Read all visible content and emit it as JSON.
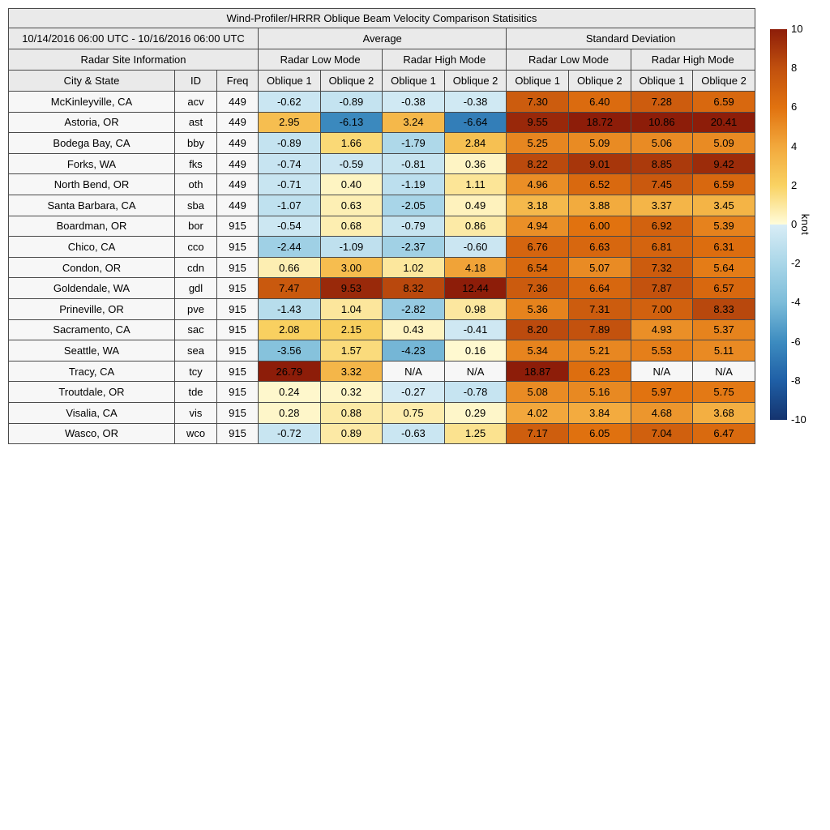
{
  "chart_data": {
    "type": "table",
    "title": "Wind-Profiler/HRRR Oblique Beam Velocity Comparison Statisitics",
    "date_range": "10/14/2016 06:00 UTC - 10/16/2016 06:00 UTC",
    "site_info_header": "Radar Site Information",
    "group_headers": [
      "Average",
      "Standard Deviation"
    ],
    "mode_headers": [
      "Radar Low Mode",
      "Radar High Mode",
      "Radar Low Mode",
      "Radar High Mode"
    ],
    "columns": [
      "City & State",
      "ID",
      "Freq",
      "Oblique 1",
      "Oblique 2",
      "Oblique 1",
      "Oblique 2",
      "Oblique 1",
      "Oblique 2",
      "Oblique 1",
      "Oblique 2"
    ],
    "rows": [
      {
        "city": "McKinleyville, CA",
        "id": "acv",
        "freq": "449",
        "values": [
          "-0.62",
          "-0.89",
          "-0.38",
          "-0.38",
          "7.30",
          "6.40",
          "7.28",
          "6.59"
        ]
      },
      {
        "city": "Astoria, OR",
        "id": "ast",
        "freq": "449",
        "values": [
          "2.95",
          "-6.13",
          "3.24",
          "-6.64",
          "9.55",
          "18.72",
          "10.86",
          "20.41"
        ]
      },
      {
        "city": "Bodega Bay, CA",
        "id": "bby",
        "freq": "449",
        "values": [
          "-0.89",
          "1.66",
          "-1.79",
          "2.84",
          "5.25",
          "5.09",
          "5.06",
          "5.09"
        ]
      },
      {
        "city": "Forks, WA",
        "id": "fks",
        "freq": "449",
        "values": [
          "-0.74",
          "-0.59",
          "-0.81",
          "0.36",
          "8.22",
          "9.01",
          "8.85",
          "9.42"
        ]
      },
      {
        "city": "North Bend, OR",
        "id": "oth",
        "freq": "449",
        "values": [
          "-0.71",
          "0.40",
          "-1.19",
          "1.11",
          "4.96",
          "6.52",
          "7.45",
          "6.59"
        ]
      },
      {
        "city": "Santa Barbara, CA",
        "id": "sba",
        "freq": "449",
        "values": [
          "-1.07",
          "0.63",
          "-2.05",
          "0.49",
          "3.18",
          "3.88",
          "3.37",
          "3.45"
        ]
      },
      {
        "city": "Boardman, OR",
        "id": "bor",
        "freq": "915",
        "values": [
          "-0.54",
          "0.68",
          "-0.79",
          "0.86",
          "4.94",
          "6.00",
          "6.92",
          "5.39"
        ]
      },
      {
        "city": "Chico, CA",
        "id": "cco",
        "freq": "915",
        "values": [
          "-2.44",
          "-1.09",
          "-2.37",
          "-0.60",
          "6.76",
          "6.63",
          "6.81",
          "6.31"
        ]
      },
      {
        "city": "Condon, OR",
        "id": "cdn",
        "freq": "915",
        "values": [
          "0.66",
          "3.00",
          "1.02",
          "4.18",
          "6.54",
          "5.07",
          "7.32",
          "5.64"
        ]
      },
      {
        "city": "Goldendale, WA",
        "id": "gdl",
        "freq": "915",
        "values": [
          "7.47",
          "9.53",
          "8.32",
          "12.44",
          "7.36",
          "6.64",
          "7.87",
          "6.57"
        ]
      },
      {
        "city": "Prineville, OR",
        "id": "pve",
        "freq": "915",
        "values": [
          "-1.43",
          "1.04",
          "-2.82",
          "0.98",
          "5.36",
          "7.31",
          "7.00",
          "8.33"
        ]
      },
      {
        "city": "Sacramento, CA",
        "id": "sac",
        "freq": "915",
        "values": [
          "2.08",
          "2.15",
          "0.43",
          "-0.41",
          "8.20",
          "7.89",
          "4.93",
          "5.37"
        ]
      },
      {
        "city": "Seattle, WA",
        "id": "sea",
        "freq": "915",
        "values": [
          "-3.56",
          "1.57",
          "-4.23",
          "0.16",
          "5.34",
          "5.21",
          "5.53",
          "5.11"
        ]
      },
      {
        "city": "Tracy, CA",
        "id": "tcy",
        "freq": "915",
        "values": [
          "26.79",
          "3.32",
          "N/A",
          "N/A",
          "18.87",
          "6.23",
          "N/A",
          "N/A"
        ]
      },
      {
        "city": "Troutdale, OR",
        "id": "tde",
        "freq": "915",
        "values": [
          "0.24",
          "0.32",
          "-0.27",
          "-0.78",
          "5.08",
          "5.16",
          "5.97",
          "5.75"
        ]
      },
      {
        "city": "Visalia, CA",
        "id": "vis",
        "freq": "915",
        "values": [
          "0.28",
          "0.88",
          "0.75",
          "0.29",
          "4.02",
          "3.84",
          "4.68",
          "3.68"
        ]
      },
      {
        "city": "Wasco, OR",
        "id": "wco",
        "freq": "915",
        "values": [
          "-0.72",
          "0.89",
          "-0.63",
          "1.25",
          "7.17",
          "6.05",
          "7.04",
          "6.47"
        ]
      }
    ],
    "colorbar": {
      "label": "knot",
      "min": -10,
      "max": 10,
      "ticks": [
        "10",
        "8",
        "6",
        "4",
        "2",
        "0",
        "-2",
        "-4",
        "-6",
        "-8",
        "-10"
      ],
      "stops": [
        {
          "v": -10,
          "color": "#14336e"
        },
        {
          "v": -8,
          "color": "#1f5fa6"
        },
        {
          "v": -6,
          "color": "#3d8cc0"
        },
        {
          "v": -4,
          "color": "#7cbcd9"
        },
        {
          "v": -2,
          "color": "#a9d6e8"
        },
        {
          "v": -0.001,
          "color": "#d9edf6"
        },
        {
          "v": 0.001,
          "color": "#fffcda"
        },
        {
          "v": 2,
          "color": "#f9d262"
        },
        {
          "v": 4,
          "color": "#f2a83c"
        },
        {
          "v": 6,
          "color": "#e1720f"
        },
        {
          "v": 8,
          "color": "#c1500e"
        },
        {
          "v": 10,
          "color": "#8d1d09"
        }
      ]
    },
    "table_colors": {
      "header_bg": "#eaeaea",
      "label_bg": "#f7f7f7",
      "na_bg": "#f7f7f7",
      "border": "#4a4a4a"
    }
  }
}
